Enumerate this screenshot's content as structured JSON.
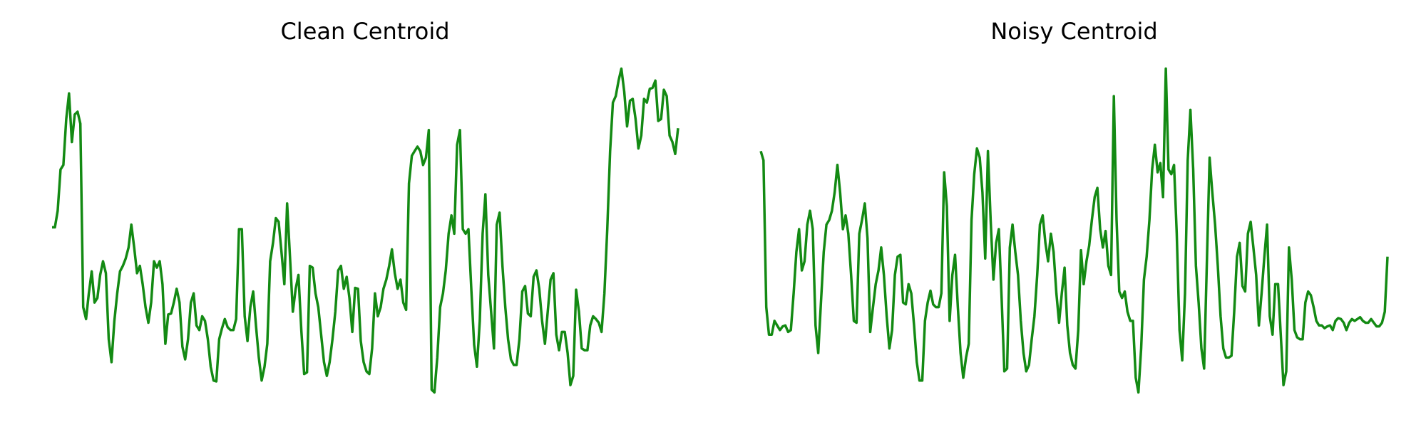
{
  "chart_data": [
    {
      "type": "line",
      "title": "Clean Centroid",
      "color": "#138a13",
      "ylim": [
        0,
        360
      ],
      "values": [
        182,
        182,
        200,
        245,
        250,
        300,
        328,
        275,
        305,
        308,
        295,
        95,
        82,
        110,
        134,
        100,
        105,
        130,
        145,
        132,
        60,
        35,
        80,
        110,
        134,
        140,
        148,
        160,
        185,
        160,
        132,
        140,
        120,
        95,
        78,
        100,
        145,
        138,
        145,
        120,
        55,
        87,
        88,
        100,
        115,
        100,
        52,
        38,
        60,
        100,
        110,
        75,
        70,
        85,
        80,
        60,
        30,
        15,
        14,
        60,
        72,
        82,
        73,
        70,
        70,
        82,
        180,
        180,
        85,
        58,
        95,
        112,
        75,
        40,
        15,
        30,
        55,
        145,
        165,
        192,
        188,
        155,
        120,
        208,
        150,
        90,
        115,
        130,
        70,
        22,
        24,
        140,
        138,
        110,
        95,
        65,
        35,
        20,
        35,
        60,
        90,
        135,
        140,
        115,
        128,
        105,
        68,
        116,
        115,
        58,
        35,
        25,
        22,
        50,
        110,
        85,
        95,
        115,
        125,
        140,
        158,
        132,
        115,
        125,
        100,
        92,
        230,
        260,
        265,
        270,
        265,
        250,
        258,
        288,
        5,
        2,
        40,
        95,
        110,
        135,
        175,
        195,
        175,
        272,
        288,
        180,
        175,
        180,
        115,
        54,
        30,
        80,
        175,
        218,
        130,
        90,
        50,
        185,
        198,
        140,
        95,
        60,
        38,
        32,
        32,
        60,
        112,
        118,
        88,
        85,
        128,
        135,
        115,
        80,
        55,
        90,
        125,
        132,
        65,
        48,
        68,
        68,
        45,
        10,
        20,
        114,
        90,
        50,
        48,
        48,
        75,
        85,
        82,
        78,
        68,
        110,
        180,
        265,
        318,
        325,
        342,
        355,
        330,
        292,
        320,
        322,
        300,
        268,
        282,
        322,
        318,
        333,
        334,
        342,
        298,
        300,
        332,
        325,
        282,
        275,
        262,
        290
      ]
    },
    {
      "type": "line",
      "title": "Noisy Centroid",
      "color": "#138a13",
      "ylim": [
        0,
        360
      ],
      "values": [
        265,
        255,
        95,
        65,
        65,
        80,
        75,
        70,
        74,
        75,
        68,
        70,
        110,
        155,
        180,
        135,
        145,
        185,
        200,
        180,
        75,
        45,
        100,
        155,
        185,
        190,
        200,
        220,
        250,
        220,
        180,
        195,
        175,
        130,
        80,
        78,
        175,
        190,
        208,
        170,
        68,
        95,
        120,
        135,
        160,
        130,
        85,
        50,
        70,
        130,
        150,
        152,
        100,
        98,
        120,
        110,
        75,
        35,
        15,
        15,
        80,
        100,
        113,
        98,
        95,
        95,
        110,
        242,
        205,
        80,
        130,
        152,
        95,
        45,
        18,
        40,
        55,
        190,
        240,
        268,
        258,
        220,
        148,
        265,
        190,
        125,
        165,
        180,
        105,
        25,
        28,
        160,
        185,
        155,
        130,
        80,
        45,
        25,
        32,
        60,
        85,
        130,
        185,
        195,
        165,
        145,
        175,
        155,
        110,
        78,
        110,
        138,
        75,
        45,
        32,
        28,
        70,
        157,
        120,
        145,
        162,
        190,
        215,
        225,
        180,
        160,
        178,
        140,
        130,
        325,
        190,
        112,
        105,
        112,
        90,
        80,
        80,
        18,
        2,
        50,
        125,
        150,
        190,
        245,
        272,
        242,
        252,
        215,
        355,
        245,
        240,
        250,
        175,
        70,
        37,
        110,
        255,
        310,
        245,
        140,
        100,
        50,
        28,
        145,
        258,
        220,
        185,
        140,
        85,
        50,
        40,
        40,
        42,
        90,
        150,
        165,
        118,
        112,
        175,
        188,
        160,
        130,
        75,
        110,
        150,
        185,
        85,
        65,
        120,
        120,
        65,
        10,
        25,
        160,
        125,
        70,
        62,
        60,
        60,
        100,
        112,
        108,
        95,
        80,
        75,
        75,
        72,
        74,
        75,
        70,
        80,
        83,
        82,
        78,
        70,
        78,
        82,
        80,
        82,
        84,
        80,
        78,
        78,
        82,
        78,
        74,
        74,
        78,
        90,
        150
      ]
    }
  ]
}
